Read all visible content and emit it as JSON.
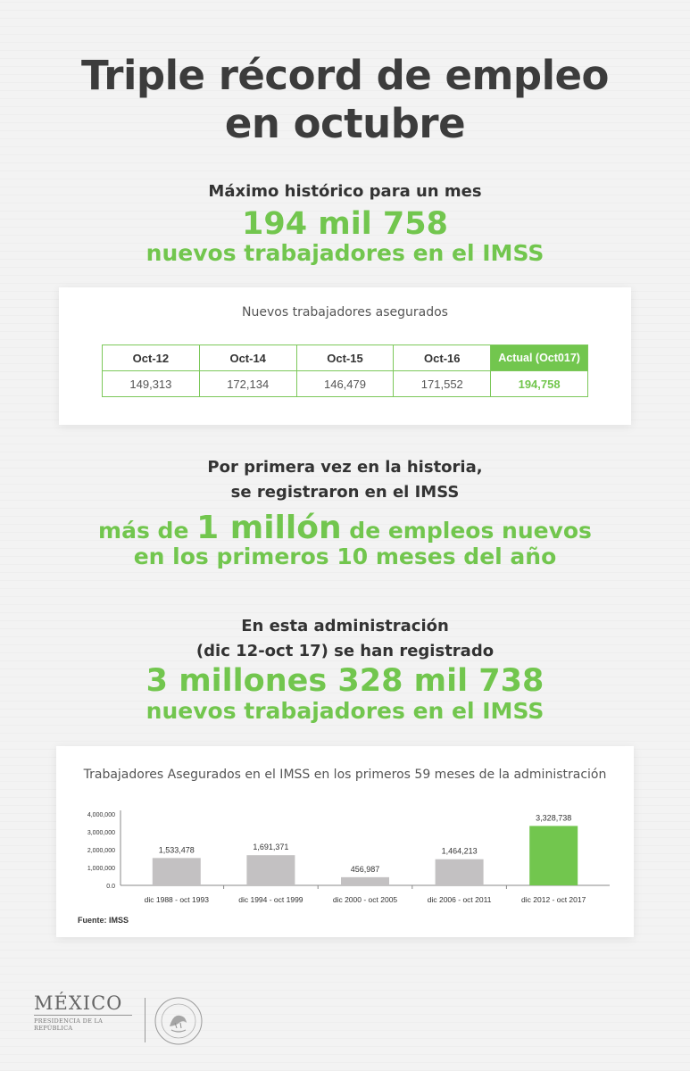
{
  "title_line1": "Triple récord de empleo",
  "title_line2": "en octubre",
  "section1": {
    "lead": "Máximo histórico para un mes",
    "big": "194 mil 758",
    "sub": "nuevos trabajadores en el IMSS"
  },
  "table": {
    "title": "Nuevos trabajadores asegurados",
    "headers": [
      "Oct-12",
      "Oct-14",
      "Oct-15",
      "Oct-16",
      "Actual (Oct017)"
    ],
    "values": [
      "149,313",
      "172,134",
      "146,479",
      "171,552",
      "194,758"
    ]
  },
  "section2": {
    "lead1": "Por primera vez en la historia,",
    "lead2": "se registraron en el IMSS",
    "green_pre": "más de ",
    "green_big": "1 millón",
    "green_post": " de empleos nuevos",
    "green_line2": "en los primeros 10 meses del año"
  },
  "section3": {
    "lead1": "En esta administración",
    "lead2": "(dic 12-oct 17) se han registrado",
    "big": "3 millones 328 mil 738",
    "sub": "nuevos trabajadores en el IMSS"
  },
  "chart_data": {
    "type": "bar",
    "title": "Trabajadores Asegurados en el IMSS  en los primeros 59 meses de la administración",
    "categories": [
      "dic 1988 - oct 1993",
      "dic 1994 - oct 1999",
      "dic 2000 - oct 2005",
      "dic 2006 - oct 2011",
      "dic 2012 - oct 2017"
    ],
    "values": [
      1533478,
      1691371,
      456987,
      1464213,
      3328738
    ],
    "value_labels": [
      "1,533,478",
      "1,691,371",
      "456,987",
      "1,464,213",
      "3,328,738"
    ],
    "yticks": [
      "4,000,000",
      "3,000,000",
      "2,000,000",
      "1,000,000",
      "0.0"
    ],
    "ytick_values": [
      4000000,
      3000000,
      2000000,
      1000000,
      0
    ],
    "ylim": [
      0,
      4000000
    ],
    "bar_color": "#c3c1c2",
    "highlight_color": "#72c64e",
    "highlight_index": 4
  },
  "source": "Fuente: IMSS",
  "footer": {
    "mexico": "MÉXICO",
    "presidencia": "PRESIDENCIA DE LA REPÚBLICA"
  }
}
